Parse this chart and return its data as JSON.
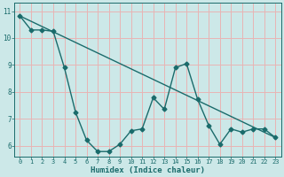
{
  "title": "",
  "xlabel": "Humidex (Indice chaleur)",
  "ylabel": "",
  "background_color": "#cce8e8",
  "line_color": "#1a6b6b",
  "grid_color": "#e8b4b4",
  "xlim": [
    -0.5,
    23.5
  ],
  "ylim": [
    5.6,
    11.3
  ],
  "yticks": [
    6,
    7,
    8,
    9,
    10,
    11
  ],
  "xticks": [
    0,
    1,
    2,
    3,
    4,
    5,
    6,
    7,
    8,
    9,
    10,
    11,
    12,
    13,
    14,
    15,
    16,
    17,
    18,
    19,
    20,
    21,
    22,
    23
  ],
  "series1_x": [
    0,
    1,
    2,
    3,
    4,
    5,
    6,
    7,
    8,
    9,
    10,
    11,
    12,
    13,
    14,
    15,
    16,
    17,
    18,
    19,
    20,
    21,
    22,
    23
  ],
  "series1_y": [
    10.82,
    10.3,
    10.3,
    10.25,
    8.9,
    7.25,
    6.2,
    5.78,
    5.78,
    6.05,
    6.55,
    6.62,
    7.78,
    7.35,
    8.9,
    9.05,
    7.72,
    6.75,
    6.05,
    6.62,
    6.5,
    6.62,
    6.62,
    6.3
  ],
  "series2_x": [
    0,
    23
  ],
  "series2_y": [
    10.82,
    6.3
  ]
}
